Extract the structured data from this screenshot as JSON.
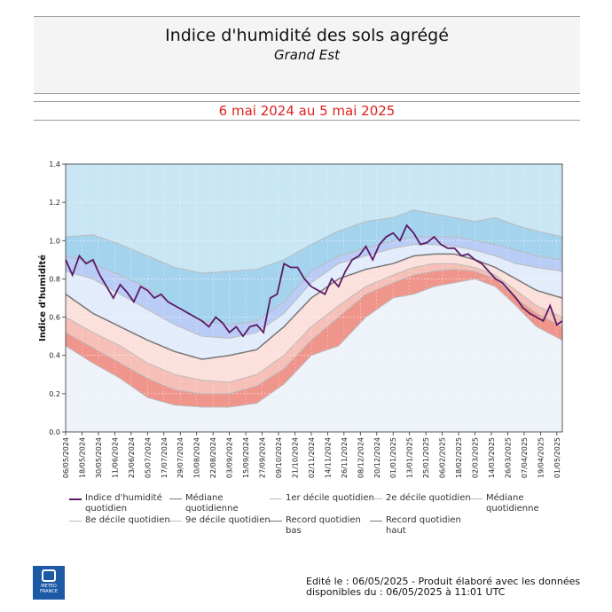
{
  "header": {
    "title": "Indice d'humidité des sols agrégé",
    "subtitle": "Grand Est",
    "period": "6 mai 2024 au 5 mai 2025"
  },
  "footer": {
    "line1": "Edité le : 06/05/2025 - Produit élaboré avec les données",
    "line2": "disponibles du : 06/05/2025 à 11:01 UTC"
  },
  "logo": {
    "text1": "METEO",
    "text2": "FRANCE"
  },
  "colors": {
    "index_line": "#5b1a63",
    "median_line": "#777777",
    "decile_line": "#bbbbbb",
    "band_record_low": "#f0958c",
    "band_low": "#f6c0b8",
    "band_lowmid": "#fbe0dc",
    "band_himid": "#e2ecfb",
    "band_high": "#b8ccf6",
    "band_record_high": "#a4d3ee",
    "band_top": "#c8e6f4",
    "band_bottom": "#eef3fa"
  },
  "legend": [
    {
      "label": "Indice d'humidité quotidien",
      "type": "line",
      "color": "#5b1a63",
      "width": 2
    },
    {
      "label": "Médiane quotidienne",
      "type": "line",
      "color": "#777777",
      "width": 1.5
    },
    {
      "label": "1er décile quotidien",
      "type": "line",
      "color": "#bbbbbb",
      "width": 1
    },
    {
      "label": "2e décile quotidien",
      "type": "line",
      "color": "#bbbbbb",
      "width": 1
    },
    {
      "label": "Médiane quotidienne",
      "type": "line",
      "color": "#bbbbbb",
      "width": 1
    },
    {
      "label": "8e décile quotidien",
      "type": "line",
      "color": "#bbbbbb",
      "width": 1
    },
    {
      "label": "9e décile quotidien",
      "type": "line",
      "color": "#bbbbbb",
      "width": 1
    },
    {
      "label": "Record quotidien bas",
      "type": "line",
      "color": "#777777",
      "width": 1
    },
    {
      "label": "Record quotidien haut",
      "type": "line",
      "color": "#777777",
      "width": 1
    }
  ],
  "chart_data": {
    "type": "line",
    "ylabel": "Indice d'humidité",
    "ylim": [
      0.0,
      1.4
    ],
    "yticks": [
      "0.0",
      "0.2",
      "0.4",
      "0.6",
      "0.8",
      "1.0",
      "1.2",
      "1.4"
    ],
    "xticks": [
      "06/05/2024",
      "18/05/2024",
      "30/05/2024",
      "11/06/2024",
      "23/06/2024",
      "05/07/2024",
      "17/07/2024",
      "29/07/2024",
      "10/08/2024",
      "22/08/2024",
      "03/09/2024",
      "15/09/2024",
      "27/09/2024",
      "09/10/2024",
      "21/10/2024",
      "02/11/2024",
      "14/11/2024",
      "26/11/2024",
      "08/12/2024",
      "20/12/2024",
      "01/01/2025",
      "13/01/2025",
      "25/01/2025",
      "06/02/2025",
      "18/02/2025",
      "02/03/2025",
      "14/03/2025",
      "26/03/2025",
      "07/04/2025",
      "19/04/2025",
      "01/05/2025"
    ],
    "x_days": [
      0,
      12,
      24,
      36,
      48,
      60,
      72,
      84,
      96,
      108,
      120,
      132,
      144,
      156,
      168,
      180,
      192,
      204,
      216,
      228,
      240,
      252,
      264,
      276,
      288,
      300,
      312,
      324,
      336,
      348,
      360
    ],
    "day_range": [
      0,
      364
    ],
    "grid": true,
    "series": [
      {
        "name": "Record quotidien haut",
        "x": [
          0,
          20,
          40,
          60,
          80,
          100,
          120,
          140,
          160,
          180,
          200,
          220,
          240,
          255,
          270,
          285,
          300,
          315,
          330,
          345,
          364
        ],
        "y": [
          1.02,
          1.03,
          0.98,
          0.92,
          0.86,
          0.83,
          0.84,
          0.85,
          0.9,
          0.98,
          1.05,
          1.1,
          1.12,
          1.16,
          1.14,
          1.12,
          1.1,
          1.12,
          1.08,
          1.05,
          1.02
        ]
      },
      {
        "name": "9e décile quotidien",
        "x": [
          0,
          20,
          40,
          60,
          80,
          100,
          120,
          140,
          160,
          180,
          200,
          220,
          240,
          255,
          270,
          285,
          300,
          315,
          330,
          345,
          364
        ],
        "y": [
          0.92,
          0.88,
          0.82,
          0.75,
          0.66,
          0.58,
          0.56,
          0.58,
          0.68,
          0.84,
          0.92,
          0.96,
          1.0,
          1.02,
          1.02,
          1.02,
          1.0,
          0.98,
          0.95,
          0.92,
          0.9
        ]
      },
      {
        "name": "8e décile quotidien",
        "x": [
          0,
          20,
          40,
          60,
          80,
          100,
          120,
          140,
          160,
          180,
          200,
          220,
          240,
          255,
          270,
          285,
          300,
          315,
          330,
          345,
          364
        ],
        "y": [
          0.84,
          0.8,
          0.72,
          0.64,
          0.56,
          0.5,
          0.49,
          0.52,
          0.62,
          0.78,
          0.88,
          0.92,
          0.96,
          0.98,
          0.98,
          0.97,
          0.95,
          0.92,
          0.88,
          0.86,
          0.84
        ]
      },
      {
        "name": "Médiane quotidienne",
        "x": [
          0,
          20,
          40,
          60,
          80,
          100,
          120,
          140,
          160,
          180,
          200,
          220,
          240,
          255,
          270,
          285,
          300,
          315,
          330,
          345,
          364
        ],
        "y": [
          0.72,
          0.62,
          0.55,
          0.48,
          0.42,
          0.38,
          0.4,
          0.43,
          0.55,
          0.7,
          0.8,
          0.85,
          0.88,
          0.92,
          0.93,
          0.93,
          0.9,
          0.86,
          0.8,
          0.74,
          0.7
        ]
      },
      {
        "name": "2e décile quotidien",
        "x": [
          0,
          20,
          40,
          60,
          80,
          100,
          120,
          140,
          160,
          180,
          200,
          220,
          240,
          255,
          270,
          285,
          300,
          315,
          330,
          345,
          364
        ],
        "y": [
          0.6,
          0.52,
          0.45,
          0.36,
          0.3,
          0.27,
          0.26,
          0.3,
          0.4,
          0.55,
          0.66,
          0.76,
          0.82,
          0.86,
          0.88,
          0.88,
          0.86,
          0.82,
          0.74,
          0.66,
          0.6
        ]
      },
      {
        "name": "1er décile quotidien",
        "x": [
          0,
          20,
          40,
          60,
          80,
          100,
          120,
          140,
          160,
          180,
          200,
          220,
          240,
          255,
          270,
          285,
          300,
          315,
          330,
          345,
          364
        ],
        "y": [
          0.52,
          0.44,
          0.36,
          0.28,
          0.22,
          0.2,
          0.2,
          0.24,
          0.33,
          0.48,
          0.6,
          0.72,
          0.78,
          0.82,
          0.84,
          0.85,
          0.84,
          0.8,
          0.7,
          0.62,
          0.55
        ]
      },
      {
        "name": "Record quotidien bas",
        "x": [
          0,
          20,
          40,
          60,
          80,
          100,
          120,
          140,
          160,
          180,
          200,
          220,
          240,
          255,
          270,
          285,
          300,
          315,
          330,
          345,
          364
        ],
        "y": [
          0.45,
          0.36,
          0.28,
          0.18,
          0.14,
          0.13,
          0.13,
          0.15,
          0.25,
          0.4,
          0.45,
          0.6,
          0.7,
          0.72,
          0.76,
          0.78,
          0.8,
          0.76,
          0.66,
          0.55,
          0.48
        ]
      },
      {
        "name": "Indice d'humidité quotidien",
        "x": [
          0,
          5,
          10,
          15,
          20,
          25,
          30,
          35,
          40,
          45,
          50,
          55,
          60,
          65,
          70,
          75,
          80,
          85,
          90,
          95,
          100,
          105,
          110,
          115,
          120,
          125,
          130,
          135,
          140,
          145,
          150,
          155,
          160,
          165,
          170,
          175,
          180,
          185,
          190,
          195,
          200,
          205,
          210,
          215,
          220,
          225,
          230,
          235,
          240,
          245,
          250,
          255,
          260,
          265,
          270,
          275,
          280,
          285,
          290,
          295,
          300,
          305,
          310,
          315,
          320,
          325,
          330,
          335,
          340,
          345,
          350,
          355,
          360,
          364
        ],
        "y": [
          0.9,
          0.82,
          0.92,
          0.88,
          0.9,
          0.82,
          0.76,
          0.7,
          0.77,
          0.73,
          0.68,
          0.76,
          0.74,
          0.7,
          0.72,
          0.68,
          0.66,
          0.64,
          0.62,
          0.6,
          0.58,
          0.55,
          0.6,
          0.57,
          0.52,
          0.55,
          0.5,
          0.55,
          0.56,
          0.52,
          0.7,
          0.72,
          0.88,
          0.86,
          0.86,
          0.8,
          0.76,
          0.74,
          0.72,
          0.8,
          0.76,
          0.84,
          0.9,
          0.92,
          0.97,
          0.9,
          0.98,
          1.02,
          1.04,
          1.0,
          1.08,
          1.04,
          0.98,
          0.99,
          1.02,
          0.98,
          0.96,
          0.96,
          0.92,
          0.93,
          0.9,
          0.88,
          0.84,
          0.8,
          0.78,
          0.74,
          0.7,
          0.65,
          0.62,
          0.6,
          0.58,
          0.66,
          0.56,
          0.58
        ]
      }
    ]
  }
}
